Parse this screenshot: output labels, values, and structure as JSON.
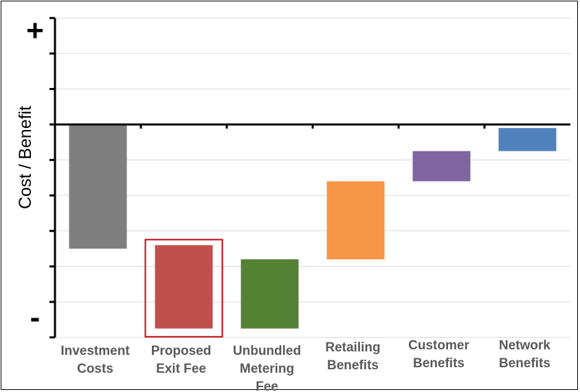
{
  "chart_data": {
    "type": "bar",
    "subtype": "waterfall",
    "title": "",
    "xlabel": "",
    "ylabel": "Cost / Benefit",
    "y_top_symbol": "+",
    "y_bottom_symbol": "-",
    "ylim": [
      -6,
      3
    ],
    "grid": true,
    "legend": "none",
    "categories": [
      [
        "Investment",
        "Costs"
      ],
      [
        "Proposed",
        "Exit Fee"
      ],
      [
        "Unbundled",
        "Metering",
        "Fee"
      ],
      [
        "Retailing",
        "Benefits"
      ],
      [
        "Customer",
        "Benefits"
      ],
      [
        "Network",
        "Benefits"
      ]
    ],
    "bars": [
      {
        "from": 0.0,
        "to": -3.5,
        "color": "#7f7f7f"
      },
      {
        "from": -3.4,
        "to": -5.75,
        "color": "#c0504d",
        "highlight": true,
        "highlight_color": "#c0000b"
      },
      {
        "from": -3.8,
        "to": -5.75,
        "color": "#548235"
      },
      {
        "from": -1.6,
        "to": -3.8,
        "color": "#f79646"
      },
      {
        "from": -0.75,
        "to": -1.6,
        "color": "#8064a2"
      },
      {
        "from": -0.1,
        "to": -0.75,
        "color": "#4f81bd"
      }
    ]
  }
}
